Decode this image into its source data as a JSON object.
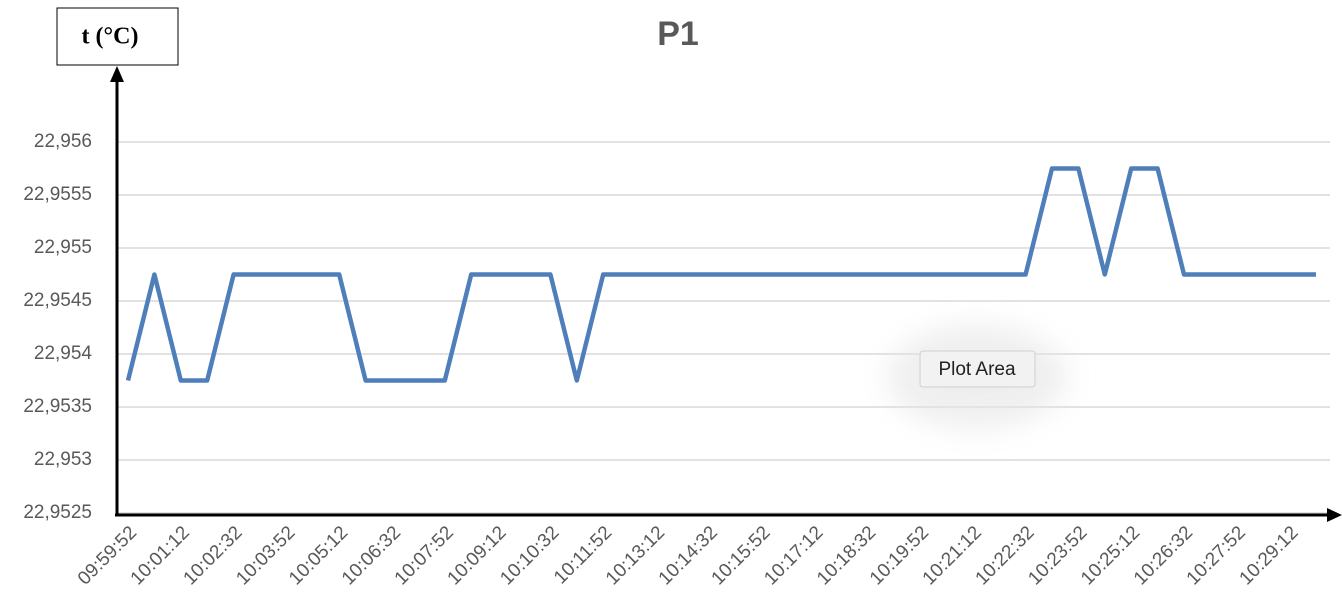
{
  "chart_data": {
    "type": "line",
    "title": "P1",
    "y_label": "t (°C)",
    "annotation": "Plot Area",
    "categories": [
      "09:59:52",
      null,
      "10:01:12",
      null,
      "10:02:32",
      null,
      "10:03:52",
      null,
      "10:05:12",
      null,
      "10:06:32",
      null,
      "10:07:52",
      null,
      "10:09:12",
      null,
      "10:10:32",
      null,
      "10:11:52",
      null,
      "10:13:12",
      null,
      "10:14:32",
      null,
      "10:15:52",
      null,
      "10:17:12",
      null,
      "10:18:32",
      null,
      "10:19:52",
      null,
      "10:21:12",
      null,
      "10:22:32",
      null,
      "10:23:52",
      null,
      "10:25:12",
      null,
      "10:26:32",
      null,
      "10:27:52",
      null,
      "10:29:12",
      null
    ],
    "series": [
      {
        "name": "P1",
        "color": "#4f7fba",
        "values": [
          22.95375,
          22.95475,
          22.95375,
          22.95375,
          22.95475,
          22.95475,
          22.95475,
          22.95475,
          22.95475,
          22.95375,
          22.95375,
          22.95375,
          22.95375,
          22.95475,
          22.95475,
          22.95475,
          22.95475,
          22.95375,
          22.95475,
          22.95475,
          22.95475,
          22.95475,
          22.95475,
          22.95475,
          22.95475,
          22.95475,
          22.95475,
          22.95475,
          22.95475,
          22.95475,
          22.95475,
          22.95475,
          22.95475,
          22.95475,
          22.95475,
          22.95575,
          22.95575,
          22.95475,
          22.95575,
          22.95575,
          22.95475,
          22.95475,
          22.95475,
          22.95475,
          22.95475,
          22.95475
        ]
      }
    ],
    "ylim": [
      22.9525,
      22.956
    ],
    "yticks": [
      {
        "value": 22.9525,
        "label": "22,9525"
      },
      {
        "value": 22.953,
        "label": "22,953"
      },
      {
        "value": 22.9535,
        "label": "22,9535"
      },
      {
        "value": 22.954,
        "label": "22,954"
      },
      {
        "value": 22.9545,
        "label": "22,9545"
      },
      {
        "value": 22.955,
        "label": "22,955"
      },
      {
        "value": 22.9555,
        "label": "22,9555"
      },
      {
        "value": 22.956,
        "label": "22,956"
      }
    ],
    "grid": true
  }
}
